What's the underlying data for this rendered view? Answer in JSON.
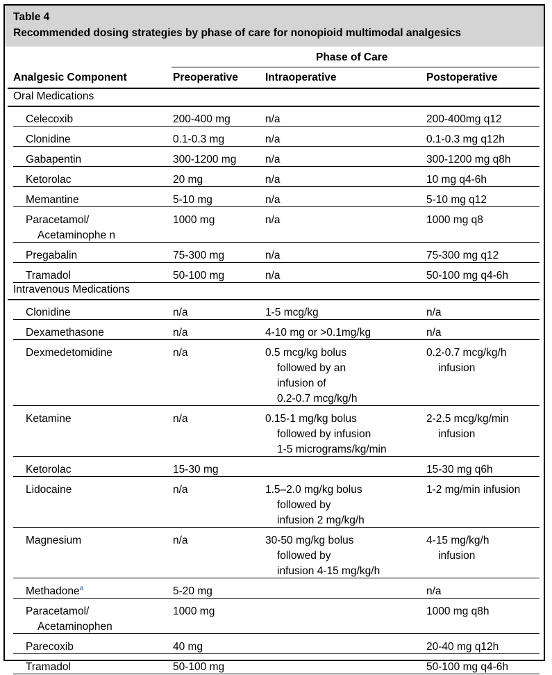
{
  "table": {
    "number": "Table 4",
    "caption": "Recommended dosing strategies by phase of care for nonopioid multimodal analgesics",
    "phase_header": "Phase of Care",
    "columns": [
      "Analgesic Component",
      "Preoperative",
      "Intraoperative",
      "Postoperative"
    ]
  },
  "sections": [
    {
      "title": "Oral Medications",
      "rows": [
        {
          "drug": [
            "Celecoxib"
          ],
          "pre": [
            "200-400 mg"
          ],
          "intra": [
            "n/a"
          ],
          "post": [
            "200-400mg q12"
          ]
        },
        {
          "drug": [
            "Clonidine"
          ],
          "pre": [
            "0.1-0.3 mg"
          ],
          "intra": [
            "n/a"
          ],
          "post": [
            "0.1-0.3 mg q12h"
          ]
        },
        {
          "drug": [
            "Gabapentin"
          ],
          "pre": [
            "300-1200 mg"
          ],
          "intra": [
            "n/a"
          ],
          "post": [
            "300-1200 mg q8h"
          ]
        },
        {
          "drug": [
            "Ketorolac"
          ],
          "pre": [
            "20 mg"
          ],
          "intra": [
            "n/a"
          ],
          "post": [
            "10 mg q4-6h"
          ]
        },
        {
          "drug": [
            "Memantine"
          ],
          "pre": [
            "5-10 mg"
          ],
          "intra": [
            "n/a"
          ],
          "post": [
            "5-10 mg q12"
          ]
        },
        {
          "drug": [
            "Paracetamol/",
            "Acetaminophe    n"
          ],
          "pre": [
            "1000 mg"
          ],
          "intra": [
            "n/a"
          ],
          "post": [
            "1000 mg q8"
          ]
        },
        {
          "drug": [
            "Pregabalin"
          ],
          "pre": [
            "75-300 mg"
          ],
          "intra": [
            "n/a"
          ],
          "post": [
            "75-300 mg q12"
          ]
        },
        {
          "drug": [
            "Tramadol"
          ],
          "pre": [
            "50-100 mg"
          ],
          "intra": [
            "n/a"
          ],
          "post": [
            "50-100 mg q4-6h"
          ]
        }
      ]
    },
    {
      "title": "Intravenous Medications",
      "rows": [
        {
          "drug": [
            "Clonidine"
          ],
          "pre": [
            "n/a"
          ],
          "intra": [
            "1-5 mcg/kg"
          ],
          "post": [
            "n/a"
          ]
        },
        {
          "drug": [
            "Dexamethasone"
          ],
          "pre": [
            "n/a"
          ],
          "intra": [
            "4-10 mg or >0.1mg/kg"
          ],
          "post": [
            "n/a"
          ]
        },
        {
          "drug": [
            "Dexmedetomidine"
          ],
          "pre": [
            "n/a"
          ],
          "intra": [
            "0.5 mcg/kg bolus",
            "followed by an",
            "infusion of",
            "0.2-0.7 mcg/kg/h"
          ],
          "post": [
            "0.2-0.7 mcg/kg/h",
            "infusion"
          ]
        },
        {
          "drug": [
            "Ketamine"
          ],
          "pre": [
            "n/a"
          ],
          "intra": [
            "0.15-1 mg/kg bolus",
            "followed by infusion",
            "1-5 micrograms/kg/min"
          ],
          "post": [
            "2-2.5 mcg/kg/min",
            "infusion"
          ]
        },
        {
          "drug": [
            "Ketorolac"
          ],
          "pre": [
            "15-30 mg"
          ],
          "intra": [
            ""
          ],
          "post": [
            "15-30 mg q6h"
          ]
        },
        {
          "drug": [
            "Lidocaine"
          ],
          "pre": [
            "n/a"
          ],
          "intra": [
            "1.5–2.0 mg/kg bolus",
            "followed by",
            "infusion 2 mg/kg/h"
          ],
          "post": [
            "1-2 mg/min infusion"
          ]
        },
        {
          "drug": [
            "Magnesium"
          ],
          "pre": [
            "n/a"
          ],
          "intra": [
            "30-50 mg/kg bolus",
            "followed by",
            "infusion 4-15 mg/kg/h"
          ],
          "post": [
            "4-15 mg/kg/h",
            "infusion"
          ]
        },
        {
          "drug": [
            "Methadone"
          ],
          "sup": "a",
          "pre": [
            "5-20 mg"
          ],
          "intra": [
            ""
          ],
          "post": [
            "n/a"
          ]
        },
        {
          "drug": [
            "Paracetamol/",
            "Acetaminophen"
          ],
          "pre": [
            "1000 mg"
          ],
          "intra": [
            ""
          ],
          "post": [
            "1000 mg q8h"
          ]
        },
        {
          "drug": [
            "Parecoxib"
          ],
          "pre": [
            "40 mg"
          ],
          "intra": [
            ""
          ],
          "post": [
            "20-40 mg q12h"
          ]
        },
        {
          "drug": [
            "Tramadol"
          ],
          "pre": [
            "50-100 mg"
          ],
          "intra": [
            ""
          ],
          "post": [
            "50-100 mg q4-6h"
          ]
        }
      ]
    }
  ],
  "colors": {
    "header_band": "#d4d4d4",
    "footnote_marker": "#1f5fa8"
  }
}
